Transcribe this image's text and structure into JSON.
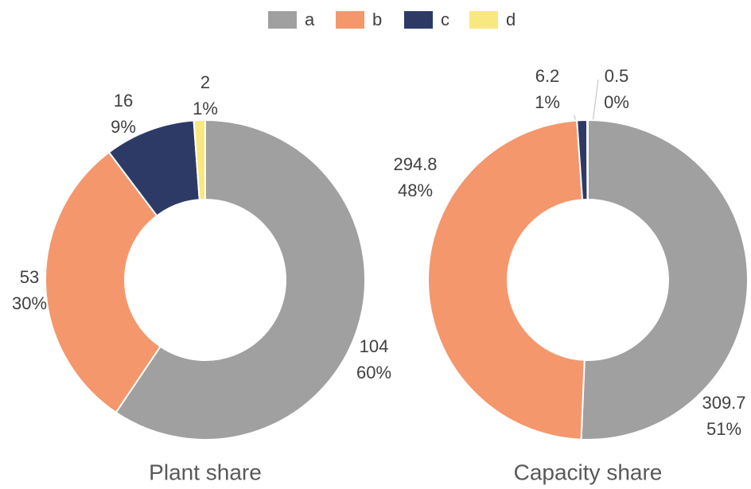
{
  "legend": {
    "items": [
      "a",
      "b",
      "c",
      "d"
    ],
    "colors": [
      "#a0a0a0",
      "#f4976c",
      "#2e3a66",
      "#f9e87f"
    ]
  },
  "chart_data": [
    {
      "type": "pie",
      "donut": true,
      "title": "Plant share",
      "values": [
        104,
        53,
        16,
        2
      ],
      "percent_labels": [
        "60%",
        "30%",
        "9%",
        "1%"
      ],
      "colors": [
        "#a0a0a0",
        "#f4976c",
        "#2e3a66",
        "#f9e87f"
      ]
    },
    {
      "type": "pie",
      "donut": true,
      "title": "Capacity share",
      "values": [
        309.7,
        294.8,
        6.2,
        0.5
      ],
      "percent_labels": [
        "51%",
        "48%",
        "1%",
        "0%"
      ],
      "colors": [
        "#a0a0a0",
        "#f4976c",
        "#2e3a66",
        "#f9e87f"
      ]
    }
  ]
}
